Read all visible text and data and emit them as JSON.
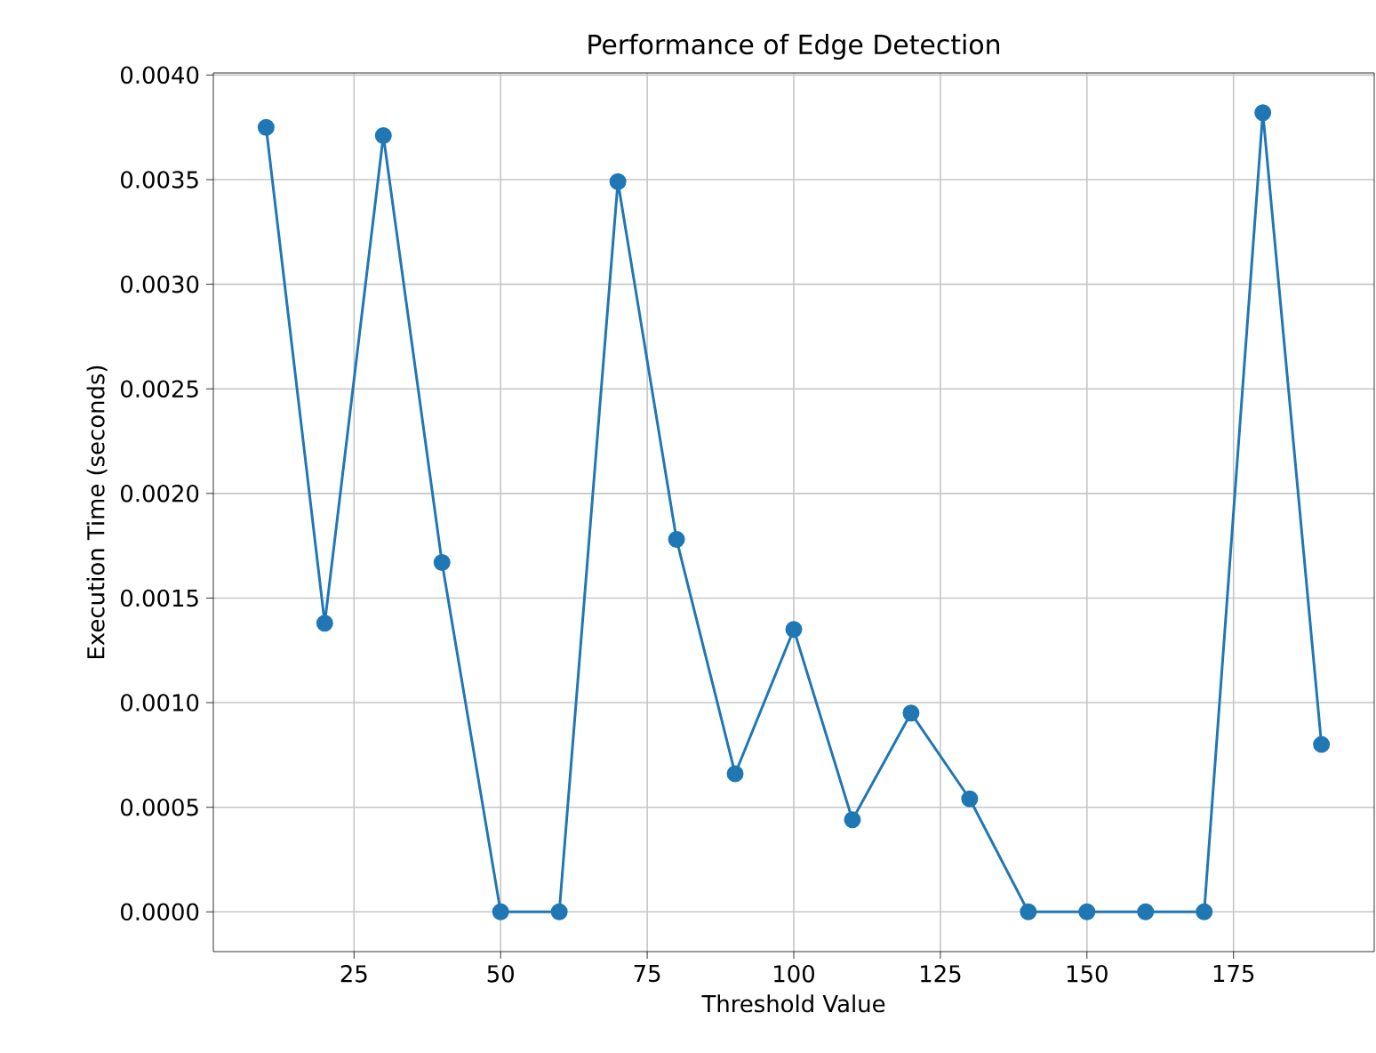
{
  "chart_data": {
    "type": "line",
    "title": "Performance of Edge Detection",
    "xlabel": "Threshold Value",
    "ylabel": "Execution Time (seconds)",
    "x": [
      10,
      20,
      30,
      40,
      50,
      60,
      70,
      80,
      90,
      100,
      110,
      120,
      130,
      140,
      150,
      160,
      170,
      180,
      190
    ],
    "series": [
      {
        "color": "#1f77b4",
        "values": [
          0.00375,
          0.00138,
          0.00371,
          0.00167,
          0,
          0,
          0.00349,
          0.00178,
          0.00066,
          0.00135,
          0.00044,
          0.00095,
          0.00054,
          0,
          0,
          0,
          0,
          0.00382,
          0.0008
        ]
      }
    ],
    "xlim": [
      1,
      199
    ],
    "ylim": [
      -0.00019,
      0.00401
    ],
    "xticks": [
      25,
      50,
      75,
      100,
      125,
      150,
      175
    ],
    "yticks": [
      {
        "value": 0,
        "label": "0.0000"
      },
      {
        "value": 0.0005,
        "label": "0.0005"
      },
      {
        "value": 0.001,
        "label": "0.0010"
      },
      {
        "value": 0.0015,
        "label": "0.0015"
      },
      {
        "value": 0.002,
        "label": "0.0020"
      },
      {
        "value": 0.0025,
        "label": "0.0025"
      },
      {
        "value": 0.003,
        "label": "0.0030"
      },
      {
        "value": 0.0035,
        "label": "0.0035"
      },
      {
        "value": 0.004,
        "label": "0.0040"
      }
    ],
    "grid": true,
    "marker": "circle",
    "line_style": "solid"
  }
}
